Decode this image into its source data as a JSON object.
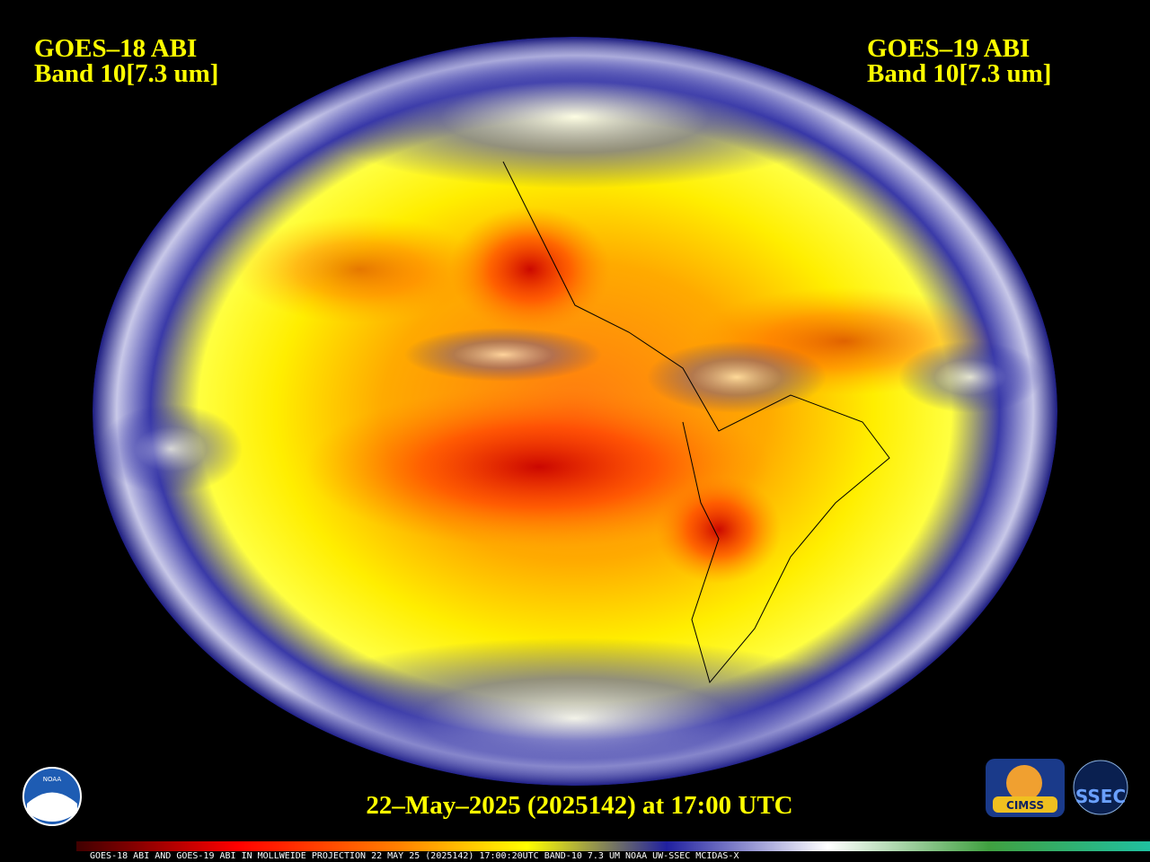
{
  "left_label": {
    "satellite": "GOES–18 ABI",
    "band": "Band 10[7.3 um]"
  },
  "right_label": {
    "satellite": "GOES–19 ABI",
    "band": "Band 10[7.3 um]"
  },
  "timestamp": "22–May–2025 (2025142) at 17:00 UTC",
  "logos": {
    "noaa": "NOAA",
    "cimss": "CIMSS",
    "ssec": "SSEC"
  },
  "colorbar_caption": "GOES-18 ABI AND GOES-19 ABI IN MOLLWEIDE PROJECTION 22 MAY 25 (2025142) 17:00:20UTC BAND-10 7.3 UM NOAA UW-SSEC MCIDAS-X"
}
